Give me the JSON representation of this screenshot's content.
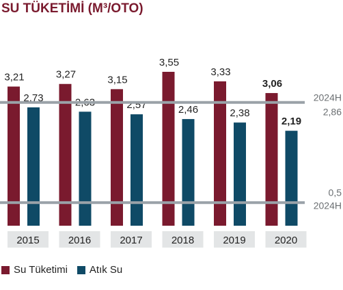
{
  "title": "SU TÜKETİMİ (M³/OTO)",
  "chart_data": {
    "type": "bar",
    "title": "SU TÜKETİMİ (M³/OTO)",
    "categories": [
      "2015",
      "2016",
      "2017",
      "2018",
      "2019",
      "2020"
    ],
    "series": [
      {
        "name": "Su Tüketimi",
        "color": "#7a1a2e",
        "values": [
          3.21,
          3.27,
          3.15,
          3.55,
          3.33,
          3.06
        ],
        "labels": [
          "3,21",
          "3,27",
          "3,15",
          "3,55",
          "3,33",
          "3,06"
        ]
      },
      {
        "name": "Atık Su",
        "color": "#0f4a66",
        "values": [
          2.73,
          2.63,
          2.57,
          2.46,
          2.38,
          2.19
        ],
        "labels": [
          "2,73",
          "2,63",
          "2,57",
          "2,46",
          "2,38",
          "2,19"
        ]
      }
    ],
    "bold_category": "2020",
    "reference_lines": [
      {
        "value": 2.86,
        "label_top": "2024H",
        "label_bottom": "2,86"
      },
      {
        "value": 0.5,
        "label_top": "0,5",
        "label_bottom": "2024H"
      }
    ],
    "reference_color": "#9aa2a8",
    "category_box_color": "#e3e5e6",
    "legend_position": "bottom-left",
    "grid": false,
    "ylim": [
      0,
      3.55
    ]
  },
  "legend": [
    {
      "label": "Su Tüketimi",
      "color": "#7a1a2e"
    },
    {
      "label": "Atık Su",
      "color": "#0f4a66"
    }
  ]
}
